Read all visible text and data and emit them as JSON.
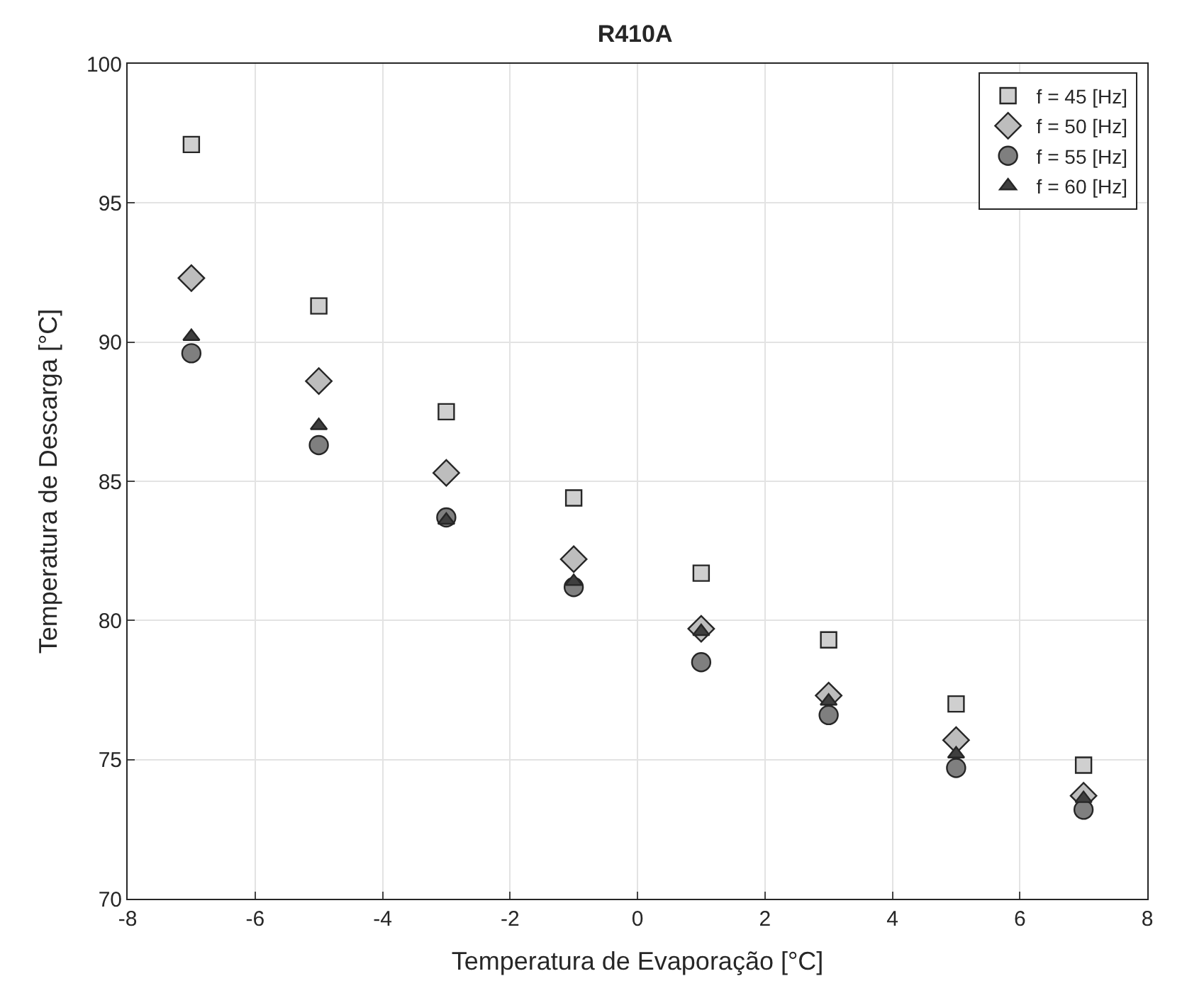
{
  "chart_data": {
    "type": "scatter",
    "title": "R410A",
    "xlabel": "Temperatura de Evaporação [°C]",
    "ylabel": "Temperatura de Descarga [°C]",
    "x": [
      -7,
      -5,
      -3,
      -1,
      1,
      3,
      5,
      7
    ],
    "series": [
      {
        "name": "f = 45 [Hz]",
        "color": "#cfcfcf",
        "marker": "square",
        "values": [
          97.1,
          91.3,
          87.5,
          84.4,
          81.7,
          79.3,
          77.0,
          74.8
        ]
      },
      {
        "name": "f = 50 [Hz]",
        "color": "#bdbdbd",
        "marker": "diamond",
        "values": [
          92.3,
          88.6,
          85.3,
          82.2,
          79.7,
          77.3,
          75.7,
          73.7
        ]
      },
      {
        "name": "f = 55 [Hz]",
        "color": "#7f7f7f",
        "marker": "circle",
        "values": [
          89.6,
          86.3,
          83.7,
          81.2,
          78.5,
          76.6,
          74.7,
          73.2
        ]
      },
      {
        "name": "f = 60 [Hz]",
        "color": "#3f3f3f",
        "marker": "triangle",
        "values": [
          90.2,
          87.0,
          83.6,
          81.4,
          79.6,
          77.1,
          75.2,
          73.6
        ]
      }
    ],
    "xlim": [
      -8,
      8
    ],
    "xticks": [
      -8,
      -6,
      -4,
      -2,
      0,
      2,
      4,
      6,
      8
    ],
    "ylim": [
      70,
      100
    ],
    "yticks": [
      70,
      75,
      80,
      85,
      90,
      95,
      100
    ],
    "grid": true,
    "legend": "top right"
  }
}
